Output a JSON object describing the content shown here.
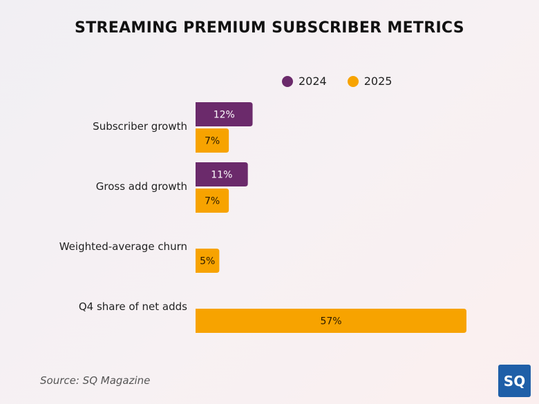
{
  "chart_data": {
    "type": "bar",
    "orientation": "horizontal",
    "title": "STREAMING PREMIUM SUBSCRIBER METRICS",
    "categories": [
      "Subscriber growth",
      "Gross add growth",
      "Weighted-average churn",
      "Q4 share of net adds"
    ],
    "series": [
      {
        "name": "2024",
        "color": "#6b2a6b",
        "values": [
          12,
          11,
          null,
          null
        ]
      },
      {
        "name": "2025",
        "color": "#f7a300",
        "values": [
          7,
          7,
          5,
          57
        ]
      }
    ],
    "value_suffix": "%",
    "xlim": [
      0,
      57
    ],
    "grid": false,
    "legend_position": "top-right",
    "xlabel": "",
    "ylabel": ""
  },
  "source": "Source: SQ Magazine",
  "logo": {
    "text": "SQ",
    "color": "#1f5fa8"
  }
}
